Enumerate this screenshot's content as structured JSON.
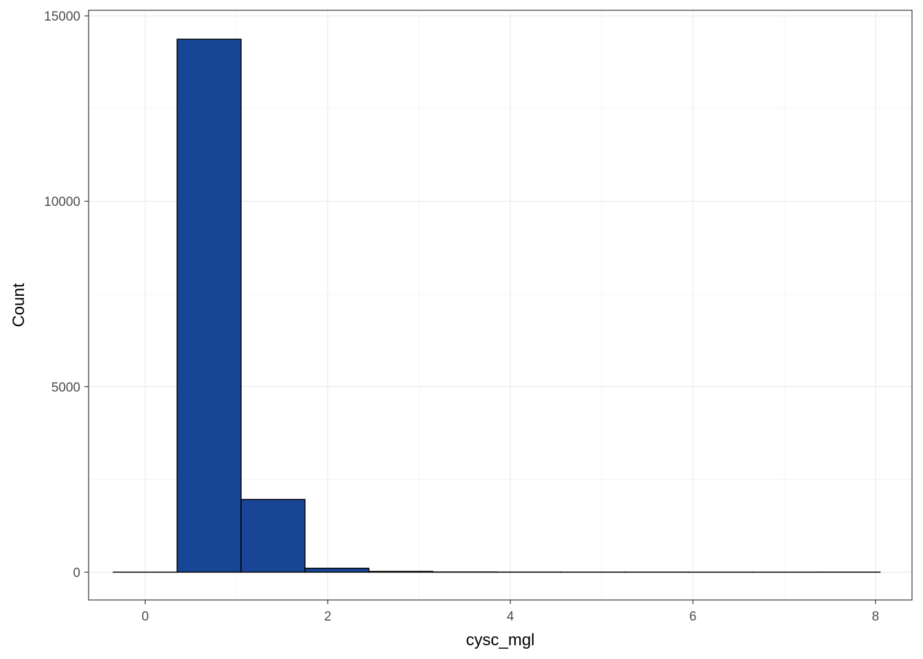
{
  "chart_data": {
    "type": "bar",
    "subtype": "histogram",
    "title": "",
    "xlabel": "cysc_mgl",
    "ylabel": "Count",
    "xlim": [
      -0.62,
      8.4
    ],
    "ylim": [
      -750,
      15150
    ],
    "x_ticks": [
      0,
      2,
      4,
      6,
      8
    ],
    "y_ticks": [
      0,
      5000,
      10000,
      15000
    ],
    "x_tick_labels": [
      "0",
      "2",
      "4",
      "6",
      "8"
    ],
    "y_tick_labels": [
      "0",
      "5000",
      "10000",
      "15000"
    ],
    "grid": true,
    "bins": [
      {
        "x0": -0.35,
        "x1": 0.35,
        "count": 0
      },
      {
        "x0": 0.35,
        "x1": 1.05,
        "count": 14370
      },
      {
        "x0": 1.05,
        "x1": 1.75,
        "count": 1960
      },
      {
        "x0": 1.75,
        "x1": 2.45,
        "count": 105
      },
      {
        "x0": 2.45,
        "x1": 3.15,
        "count": 20
      },
      {
        "x0": 3.15,
        "x1": 3.85,
        "count": 5
      },
      {
        "x0": 3.85,
        "x1": 4.55,
        "count": 2
      },
      {
        "x0": 4.55,
        "x1": 5.25,
        "count": 1
      },
      {
        "x0": 5.25,
        "x1": 5.95,
        "count": 1
      },
      {
        "x0": 5.95,
        "x1": 6.65,
        "count": 0
      },
      {
        "x0": 6.65,
        "x1": 7.35,
        "count": 0
      },
      {
        "x0": 7.35,
        "x1": 8.05,
        "count": 1
      }
    ]
  },
  "colors": {
    "bar_fill": "#184596",
    "bar_stroke": "#000000",
    "grid_major": "#ebebeb",
    "grid_minor": "#f5f5f5",
    "panel_border": "#333333",
    "tick_text": "#4d4d4d",
    "title_text": "#000000"
  }
}
